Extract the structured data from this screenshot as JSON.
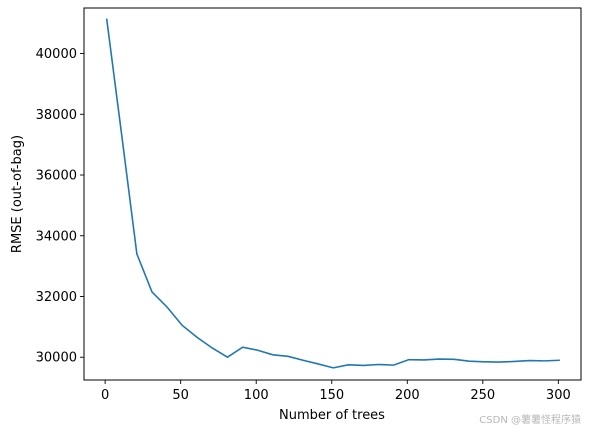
{
  "chart_data": {
    "type": "line",
    "title": "",
    "xlabel": "Number of trees",
    "ylabel": "RMSE (out-of-bag)",
    "xlim": [
      -14,
      315
    ],
    "ylim": [
      29250,
      41500
    ],
    "xticks": [
      0,
      50,
      100,
      150,
      200,
      250,
      300
    ],
    "yticks": [
      30000,
      32000,
      34000,
      36000,
      38000,
      40000
    ],
    "grid": false,
    "line_color": "#1f77b4",
    "series": [
      {
        "x": [
          1,
          11,
          21,
          31,
          41,
          51,
          61,
          71,
          81,
          91,
          101,
          111,
          121,
          131,
          141,
          151,
          161,
          171,
          181,
          191,
          201,
          211,
          221,
          231,
          241,
          251,
          261,
          271,
          281,
          291,
          301
        ],
        "values": [
          41150,
          37300,
          33400,
          32150,
          31650,
          31050,
          30650,
          30300,
          30000,
          30330,
          30230,
          30080,
          30030,
          29900,
          29780,
          29650,
          29750,
          29730,
          29760,
          29740,
          29920,
          29910,
          29940,
          29930,
          29870,
          29850,
          29840,
          29860,
          29890,
          29880,
          29900
        ]
      }
    ]
  },
  "watermark": "CSDN @薯薯怪程序猿"
}
